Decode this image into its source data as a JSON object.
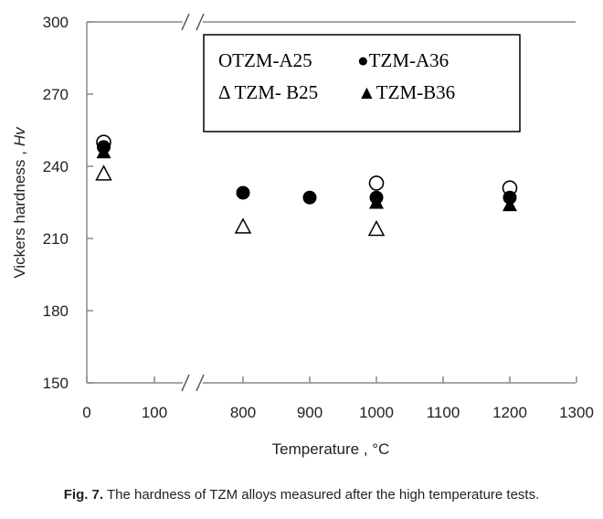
{
  "chart_data": {
    "type": "scatter",
    "xlabel": "Temperature , °C",
    "ylabel": "Vickers hardness , Hv",
    "ylabel_main": "Vickers hardness ,",
    "ylabel_unit": "Hv",
    "x_ticks": [
      "0",
      "100",
      "800",
      "900",
      "1000",
      "1100",
      "1200",
      "1300"
    ],
    "y_ticks": [
      "150",
      "180",
      "210",
      "240",
      "270",
      "300"
    ],
    "ylim": [
      150,
      300
    ],
    "x_axis_break": [
      100,
      800
    ],
    "grid": false,
    "legend_position": "top-right",
    "series": [
      {
        "name": "TZM-A25",
        "label": "OTZM-A25",
        "marker": "open-circle",
        "x": [
          25,
          1000,
          1200
        ],
        "y": [
          250,
          233,
          231
        ]
      },
      {
        "name": "TZM-A36",
        "label": "●TZM-A36",
        "marker": "filled-circle",
        "x": [
          25,
          800,
          900,
          1000,
          1200
        ],
        "y": [
          248,
          229,
          227,
          227,
          227
        ]
      },
      {
        "name": "TZM- B25",
        "label": "Δ TZM- B25",
        "marker": "open-triangle",
        "x": [
          25,
          800,
          1000
        ],
        "y": [
          237,
          215,
          214
        ]
      },
      {
        "name": "TZM-B36",
        "label": "▲TZM-B36",
        "marker": "filled-triangle",
        "x": [
          25,
          1000,
          1200
        ],
        "y": [
          246,
          225,
          224
        ]
      }
    ]
  },
  "caption": {
    "label": "Fig. 7.",
    "text": " The hardness of TZM alloys measured after the high temperature tests."
  }
}
